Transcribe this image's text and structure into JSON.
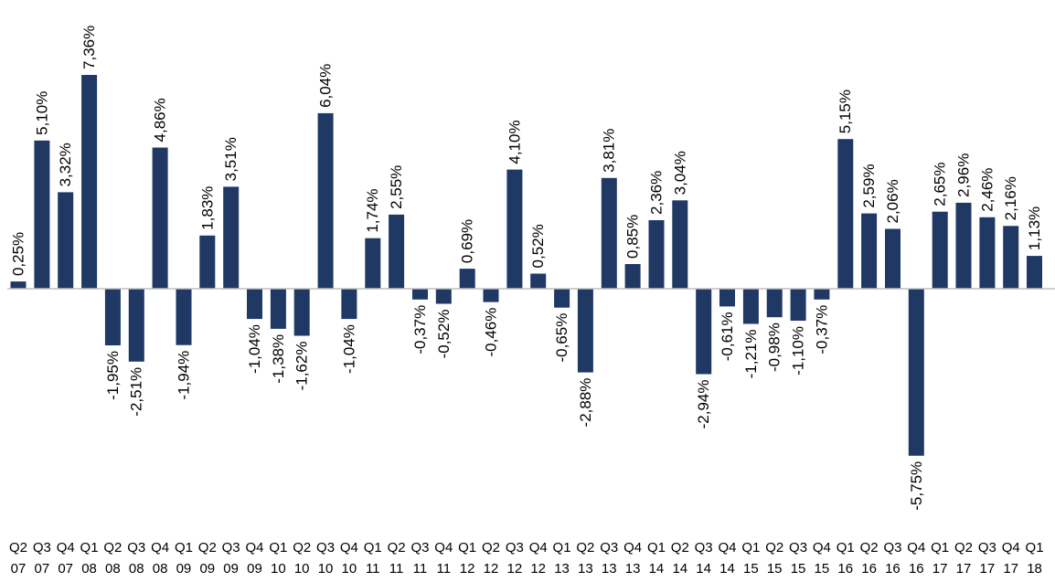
{
  "chart_data": {
    "type": "bar",
    "title": "",
    "xlabel": "",
    "ylabel": "",
    "colors": {
      "bar": "#1f3864",
      "axis": "#bfbfbf"
    },
    "ylim": [
      -6.5,
      8
    ],
    "grid": false,
    "legend": "none",
    "categories": [
      "Q2 07",
      "Q3 07",
      "Q4 07",
      "Q1 08",
      "Q2 08",
      "Q3 08",
      "Q4 08",
      "Q1 09",
      "Q2 09",
      "Q3 09",
      "Q4 09",
      "Q1 10",
      "Q2 10",
      "Q3 10",
      "Q4 10",
      "Q1 11",
      "Q2 11",
      "Q3 11",
      "Q4 11",
      "Q1 12",
      "Q2 12",
      "Q3 12",
      "Q4 12",
      "Q1 13",
      "Q2 13",
      "Q3 13",
      "Q4 13",
      "Q1 14",
      "Q2 14",
      "Q3 14",
      "Q4 14",
      "Q1 15",
      "Q2 15",
      "Q3 15",
      "Q4 15",
      "Q1 16",
      "Q2 16",
      "Q3 16",
      "Q4 16",
      "Q1 17",
      "Q2 17",
      "Q3 17",
      "Q4 17",
      "Q1 18"
    ],
    "quarters": [
      "Q2",
      "Q3",
      "Q4",
      "Q1",
      "Q2",
      "Q3",
      "Q4",
      "Q1",
      "Q2",
      "Q3",
      "Q4",
      "Q1",
      "Q2",
      "Q3",
      "Q4",
      "Q1",
      "Q2",
      "Q3",
      "Q4",
      "Q1",
      "Q2",
      "Q3",
      "Q4",
      "Q1",
      "Q2",
      "Q3",
      "Q4",
      "Q1",
      "Q2",
      "Q3",
      "Q4",
      "Q1",
      "Q2",
      "Q3",
      "Q4",
      "Q1",
      "Q2",
      "Q3",
      "Q4",
      "Q1",
      "Q2",
      "Q3",
      "Q4",
      "Q1"
    ],
    "years": [
      "07",
      "07",
      "07",
      "08",
      "08",
      "08",
      "08",
      "09",
      "09",
      "09",
      "09",
      "10",
      "10",
      "10",
      "10",
      "11",
      "11",
      "11",
      "11",
      "12",
      "12",
      "12",
      "12",
      "13",
      "13",
      "13",
      "13",
      "14",
      "14",
      "14",
      "14",
      "15",
      "15",
      "15",
      "15",
      "16",
      "16",
      "16",
      "16",
      "17",
      "17",
      "17",
      "17",
      "18"
    ],
    "values": [
      0.25,
      5.1,
      3.32,
      7.36,
      -1.95,
      -2.51,
      4.86,
      -1.94,
      1.83,
      3.51,
      -1.04,
      -1.38,
      -1.62,
      6.04,
      -1.04,
      1.74,
      2.55,
      -0.37,
      -0.52,
      0.69,
      -0.46,
      4.1,
      0.52,
      -0.65,
      -2.88,
      3.81,
      0.85,
      2.36,
      3.04,
      -2.94,
      -0.61,
      -1.21,
      -0.98,
      -1.1,
      -0.37,
      5.15,
      2.59,
      2.06,
      -5.75,
      2.65,
      2.96,
      2.46,
      2.16,
      1.13
    ],
    "labels": [
      "0,25%",
      "5,10%",
      "3,32%",
      "7,36%",
      "-1,95%",
      "-2,51%",
      "4,86%",
      "-1,94%",
      "1,83%",
      "3,51%",
      "-1,04%",
      "-1,38%",
      "-1,62%",
      "6,04%",
      "-1,04%",
      "1,74%",
      "2,55%",
      "-0,37%",
      "-0,52%",
      "0,69%",
      "-0,46%",
      "4,10%",
      "0,52%",
      "-0,65%",
      "-2,88%",
      "3,81%",
      "0,85%",
      "2,36%",
      "3,04%",
      "-2,94%",
      "-0,61%",
      "-1,21%",
      "-0,98%",
      "-1,10%",
      "-0,37%",
      "5,15%",
      "2,59%",
      "2,06%",
      "-5,75%",
      "2,65%",
      "2,96%",
      "2,46%",
      "2,16%",
      "1,13%"
    ]
  }
}
